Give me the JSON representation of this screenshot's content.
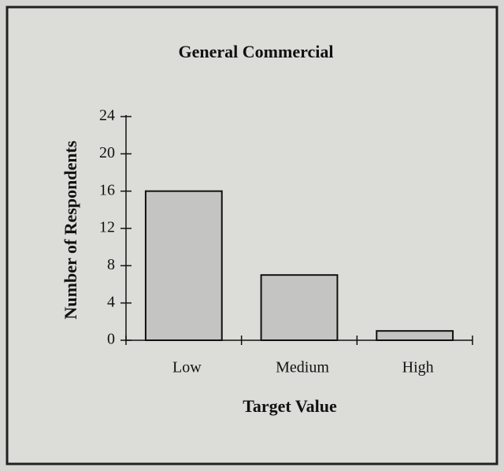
{
  "chart_data": {
    "type": "bar",
    "title": "General Commercial",
    "x_label": "Target Value",
    "y_label": "Number of Respondents",
    "categories": [
      "Low",
      "Medium",
      "High"
    ],
    "values": [
      16,
      7,
      1
    ],
    "color": "#c4c4c2",
    "ylim": [
      0,
      24
    ],
    "yticks": [
      0,
      4,
      8,
      12,
      16,
      20,
      24
    ],
    "grid": false
  }
}
